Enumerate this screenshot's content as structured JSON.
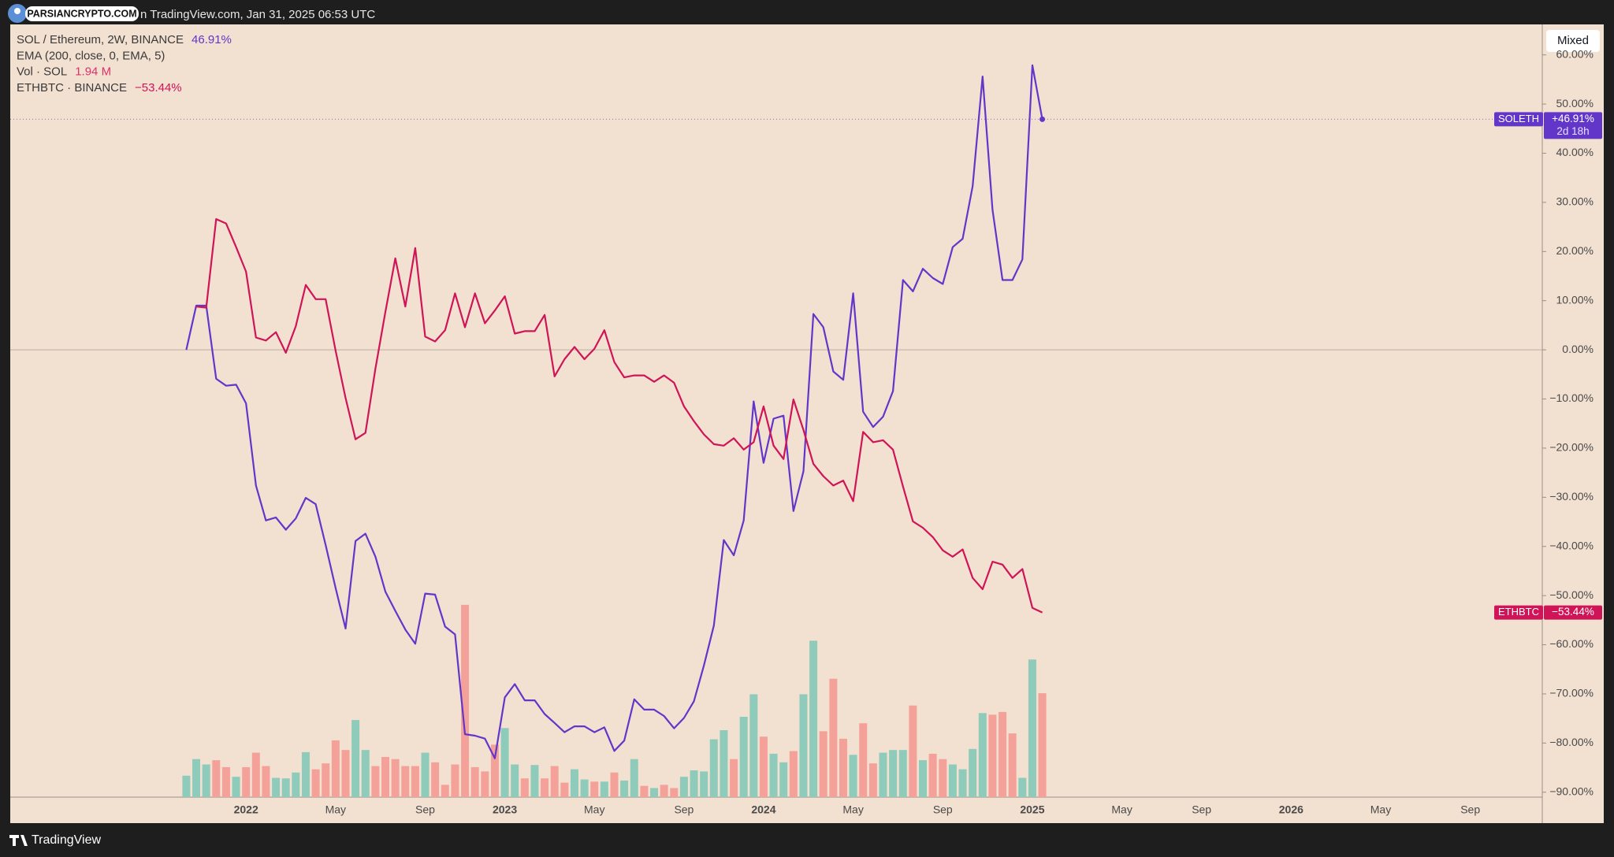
{
  "header": {
    "watermark": "PARSIANCRYPTO.COM",
    "caption": "n TradingView.com, Jan 31, 2025 06:53 UTC"
  },
  "footer": {
    "brand": "TradingView"
  },
  "controls": {
    "scale_mode": "Mixed"
  },
  "chart_data": {
    "type": "line",
    "categories": [
      null,
      null,
      null,
      null,
      null,
      null,
      "2022",
      null,
      null,
      null,
      null,
      null,
      null,
      null,
      null,
      "May",
      null,
      null,
      null,
      null,
      null,
      null,
      null,
      null,
      "Sep",
      null,
      null,
      null,
      null,
      null,
      null,
      null,
      "2023",
      null,
      null,
      null,
      null,
      null,
      null,
      null,
      null,
      "May",
      null,
      null,
      null,
      null,
      null,
      null,
      null,
      null,
      "Sep",
      null,
      null,
      null,
      null,
      null,
      null,
      null,
      "2024",
      null,
      null,
      null,
      null,
      null,
      null,
      null,
      null,
      "May",
      null,
      null,
      null,
      null,
      null,
      null,
      null,
      null,
      "Sep",
      null,
      null,
      null,
      null,
      null,
      null,
      null,
      null,
      "2025",
      null,
      null,
      null,
      null,
      null,
      null,
      null,
      null,
      "May",
      null,
      null,
      null,
      null,
      null,
      null,
      null,
      "Sep",
      null,
      null,
      null,
      null,
      null,
      null,
      null,
      null,
      "2026",
      null,
      null,
      null,
      null,
      null,
      null,
      null,
      null,
      "May",
      null,
      null,
      null,
      null,
      null,
      null,
      null,
      null,
      "Sep",
      null,
      null,
      null,
      null,
      null,
      null,
      null
    ],
    "ylim": [
      -91,
      66.2
    ],
    "yticks": [
      {
        "value": -90,
        "label": "−90.00%"
      },
      {
        "value": -80,
        "label": "−80.00%"
      },
      {
        "value": -70,
        "label": "−70.00%"
      },
      {
        "value": -60,
        "label": "−60.00%"
      },
      {
        "value": -50,
        "label": "−50.00%"
      },
      {
        "value": -40,
        "label": "−40.00%"
      },
      {
        "value": -30,
        "label": "−30.00%"
      },
      {
        "value": -20,
        "label": "−20.00%"
      },
      {
        "value": -10,
        "label": "−10.00%"
      },
      {
        "value": 0,
        "label": "0.00%"
      },
      {
        "value": 10,
        "label": "10.00%"
      },
      {
        "value": 20,
        "label": "20.00%"
      },
      {
        "value": 30,
        "label": "30.00%"
      },
      {
        "value": 40,
        "label": "40.00%"
      },
      {
        "value": 50,
        "label": "50.00%"
      },
      {
        "value": 60,
        "label": "60.00%"
      }
    ],
    "grid": false,
    "series": [
      {
        "name": "SOL / Ethereum, 2W, BINANCE",
        "symbol": "SOLETH",
        "color": "#6236c9",
        "legend_value": "46.91%",
        "badge_value": "+46.91%",
        "badge_timer": "2d 18h",
        "values": [
          0,
          9.0,
          9.0,
          -5.9,
          -7.3,
          -7.1,
          -10.9,
          -27.6,
          -34.7,
          -34.1,
          -36.6,
          -34.3,
          -30.1,
          -31.4,
          -39.7,
          -48.5,
          -56.7,
          -38.9,
          -37.4,
          -42.1,
          -49.2,
          -53.1,
          -56.9,
          -59.8,
          -49.6,
          -49.8,
          -56.3,
          -57.9,
          -78.2,
          -78.5,
          -79.1,
          -83.1,
          -70.7,
          -68.0,
          -71.3,
          -71.3,
          -74.1,
          -75.9,
          -77.8,
          -76.6,
          -76.6,
          -77.8,
          -76.8,
          -81.6,
          -79.5,
          -71.1,
          -73.2,
          -73.2,
          -74.5,
          -77.0,
          -74.9,
          -71.5,
          -64.2,
          -56.1,
          -38.7,
          -41.8,
          -34.7,
          -10.5,
          -23.0,
          -14.0,
          -13.4,
          -32.8,
          -24.7,
          7.3,
          4.6,
          -4.4,
          -6.1,
          11.5,
          -12.6,
          -15.7,
          -13.6,
          -8.4,
          14.2,
          11.9,
          16.5,
          14.6,
          13.4,
          20.9,
          22.6,
          33.3,
          55.6,
          28.5,
          14.2,
          14.2,
          18.4,
          57.9,
          46.91,
          null,
          null,
          null,
          null,
          null,
          null,
          null,
          null,
          null,
          null,
          null,
          null,
          null,
          null,
          null,
          null,
          null,
          null,
          null,
          null,
          null,
          null,
          null,
          null,
          null,
          null,
          null,
          null,
          null,
          null,
          null,
          null,
          null,
          null,
          null,
          null,
          null,
          null,
          null,
          null,
          null,
          null,
          null,
          null,
          null,
          null,
          null,
          null,
          null,
          null
        ]
      },
      {
        "name": "ETHBTC · BINANCE",
        "symbol": "ETHBTC",
        "color": "#cf1457",
        "legend_value": "−53.44%",
        "badge_value": "−53.44%",
        "values": [
          null,
          8.8,
          8.6,
          26.6,
          25.7,
          20.9,
          15.9,
          2.5,
          1.9,
          3.6,
          -0.6,
          4.8,
          13.2,
          10.3,
          10.3,
          -0.2,
          -9.8,
          -18.2,
          -16.9,
          -3.8,
          7.7,
          18.6,
          8.8,
          20.7,
          2.7,
          1.7,
          4.0,
          11.5,
          4.6,
          11.5,
          5.4,
          8.0,
          10.9,
          3.3,
          3.8,
          3.8,
          7.1,
          -5.4,
          -1.9,
          0.6,
          -1.9,
          0.2,
          4.0,
          -2.5,
          -5.6,
          -5.2,
          -5.2,
          -6.5,
          -5.2,
          -6.7,
          -11.5,
          -14.5,
          -17.2,
          -19.2,
          -19.5,
          -18.0,
          -20.3,
          -18.8,
          -11.5,
          -19.5,
          -22.2,
          -10.1,
          -16.3,
          -23.2,
          -25.7,
          -27.6,
          -26.6,
          -30.8,
          -16.7,
          -18.8,
          -18.4,
          -20.3,
          -27.8,
          -34.9,
          -36.2,
          -38.1,
          -40.8,
          -42.1,
          -40.6,
          -46.4,
          -48.7,
          -43.1,
          -43.7,
          -46.4,
          -44.6,
          -52.5,
          -53.44,
          null,
          null,
          null,
          null,
          null,
          null,
          null,
          null,
          null,
          null,
          null,
          null,
          null,
          null,
          null,
          null,
          null,
          null,
          null,
          null,
          null,
          null,
          null,
          null,
          null,
          null,
          null,
          null,
          null,
          null,
          null,
          null,
          null,
          null,
          null,
          null,
          null,
          null,
          null,
          null,
          null,
          null,
          null,
          null,
          null,
          null,
          null,
          null,
          null,
          null
        ]
      }
    ],
    "indicators": [
      {
        "name": "EMA (200, close, 0, EMA, 5)"
      }
    ],
    "volume": {
      "name": "Vol · SOL",
      "legend_value": "1.94 M",
      "legend_color": "#e0306a",
      "values": [
        0.4,
        0.71,
        0.61,
        0.69,
        0.56,
        0.38,
        0.56,
        0.83,
        0.58,
        0.36,
        0.35,
        0.46,
        0.84,
        0.52,
        0.63,
        1.06,
        0.88,
        1.44,
        0.88,
        0.58,
        0.75,
        0.71,
        0.58,
        0.58,
        0.83,
        0.65,
        0.23,
        0.61,
        3.59,
        0.56,
        0.48,
        0.98,
        1.29,
        0.61,
        0.35,
        0.6,
        0.35,
        0.58,
        0.27,
        0.52,
        0.33,
        0.29,
        0.29,
        0.46,
        0.31,
        0.71,
        0.21,
        0.17,
        0.23,
        0.17,
        0.38,
        0.5,
        0.48,
        1.08,
        1.25,
        0.71,
        1.5,
        1.92,
        1.13,
        0.81,
        0.65,
        0.86,
        1.92,
        2.92,
        1.23,
        2.21,
        1.09,
        0.79,
        1.38,
        0.63,
        0.83,
        0.88,
        0.88,
        1.71,
        0.69,
        0.81,
        0.71,
        0.61,
        0.52,
        0.9,
        1.57,
        1.54,
        1.59,
        1.19,
        0.36,
        2.57,
        1.94,
        null,
        null,
        null,
        null,
        null,
        null,
        null,
        null,
        null,
        null,
        null,
        null,
        null,
        null,
        null,
        null,
        null,
        null,
        null,
        null,
        null,
        null,
        null,
        null,
        null,
        null,
        null,
        null,
        null,
        null,
        null,
        null,
        null,
        null,
        null,
        null,
        null,
        null,
        null,
        null,
        null,
        null,
        null,
        null,
        null,
        null,
        null,
        null,
        null,
        null
      ],
      "colors": [
        "#8fcbbb",
        "#8fcbbb",
        "#8fcbbb",
        "#f4a299",
        "#f4a299",
        "#8fcbbb",
        "#f4a299",
        "#f4a299",
        "#f4a299",
        "#8fcbbb",
        "#8fcbbb",
        "#8fcbbb",
        "#8fcbbb",
        "#f4a299",
        "#f4a299",
        "#f4a299",
        "#f4a299",
        "#8fcbbb",
        "#8fcbbb",
        "#f4a299",
        "#f4a299",
        "#f4a299",
        "#f4a299",
        "#f4a299",
        "#8fcbbb",
        "#f4a299",
        "#f4a299",
        "#f4a299",
        "#f4a299",
        "#f4a299",
        "#f4a299",
        "#f4a299",
        "#8fcbbb",
        "#8fcbbb",
        "#f4a299",
        "#8fcbbb",
        "#f4a299",
        "#f4a299",
        "#f4a299",
        "#8fcbbb",
        "#8fcbbb",
        "#f4a299",
        "#8fcbbb",
        "#f4a299",
        "#8fcbbb",
        "#8fcbbb",
        "#f4a299",
        "#8fcbbb",
        "#f4a299",
        "#f4a299",
        "#8fcbbb",
        "#8fcbbb",
        "#8fcbbb",
        "#8fcbbb",
        "#8fcbbb",
        "#f4a299",
        "#8fcbbb",
        "#8fcbbb",
        "#f4a299",
        "#8fcbbb",
        "#8fcbbb",
        "#f4a299",
        "#8fcbbb",
        "#8fcbbb",
        "#f4a299",
        "#f4a299",
        "#f4a299",
        "#8fcbbb",
        "#f4a299",
        "#f4a299",
        "#8fcbbb",
        "#8fcbbb",
        "#8fcbbb",
        "#f4a299",
        "#8fcbbb",
        "#f4a299",
        "#f4a299",
        "#8fcbbb",
        "#8fcbbb",
        "#8fcbbb",
        "#8fcbbb",
        "#f4a299",
        "#f4a299",
        "#f4a299",
        "#8fcbbb",
        "#8fcbbb",
        "#f4a299",
        null,
        null,
        null,
        null,
        null,
        null,
        null,
        null,
        null,
        null,
        null,
        null,
        null,
        null,
        null,
        null,
        null,
        null,
        null,
        null,
        null,
        null,
        null,
        null,
        null,
        null,
        null,
        null,
        null,
        null,
        null,
        null,
        null,
        null,
        null,
        null,
        null,
        null,
        null,
        null,
        null,
        null,
        null,
        null,
        null,
        null,
        null,
        null,
        null,
        null
      ]
    }
  }
}
